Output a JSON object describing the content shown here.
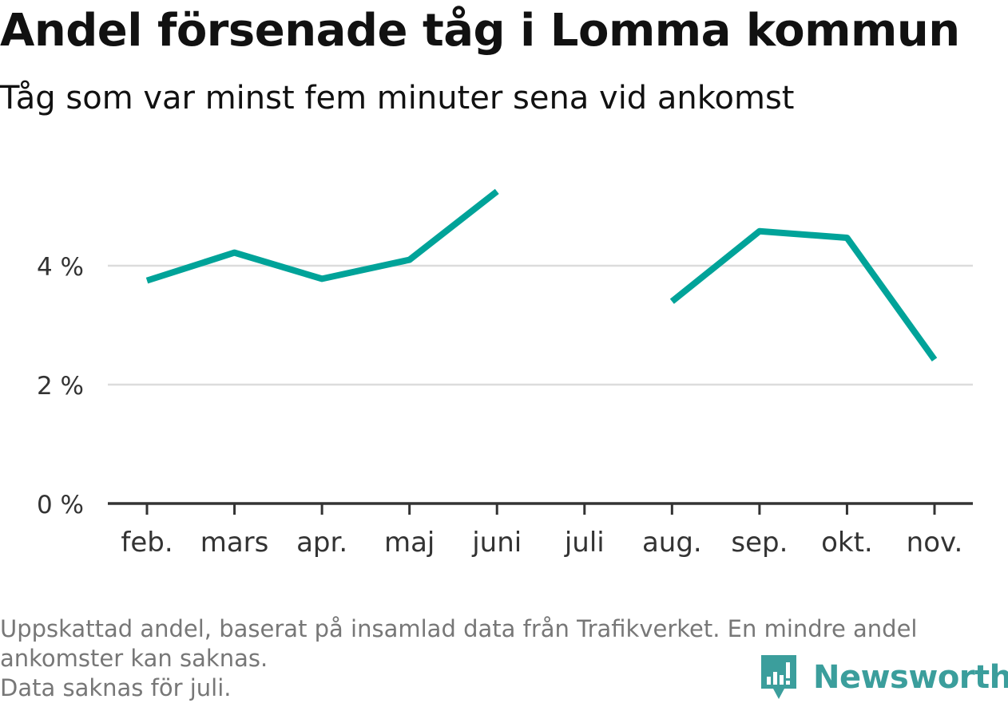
{
  "header": {
    "title": "Andel försenade tåg i Lomma kommun",
    "subtitle": "Tåg som var minst fem minuter sena vid ankomst"
  },
  "footer": {
    "note_line1": "Uppskattad andel, baserat på insamlad data från Trafikverket. En mindre andel",
    "note_line2": "ankomster kan saknas.",
    "note_line3": "Data saknas för juli."
  },
  "logo": {
    "text": "Newsworthy",
    "icon": "bar-chart-speech-bubble-icon",
    "color": "#3b9e9c"
  },
  "chart_data": {
    "type": "line",
    "categories": [
      "feb.",
      "mars",
      "apr.",
      "maj",
      "juni",
      "juli",
      "aug.",
      "sep.",
      "okt.",
      "nov."
    ],
    "series": [
      {
        "values": [
          3.75,
          4.22,
          3.78,
          4.1,
          5.25,
          null,
          3.4,
          4.58,
          4.47,
          2.42
        ],
        "color": "#00a399"
      }
    ],
    "ylim": [
      0,
      6
    ],
    "yticks": [
      0,
      2,
      4
    ],
    "ytick_labels": [
      "0 %",
      "2 %",
      "4 %"
    ],
    "grid": true,
    "legend": "none",
    "xlabel": "",
    "ylabel": ""
  }
}
